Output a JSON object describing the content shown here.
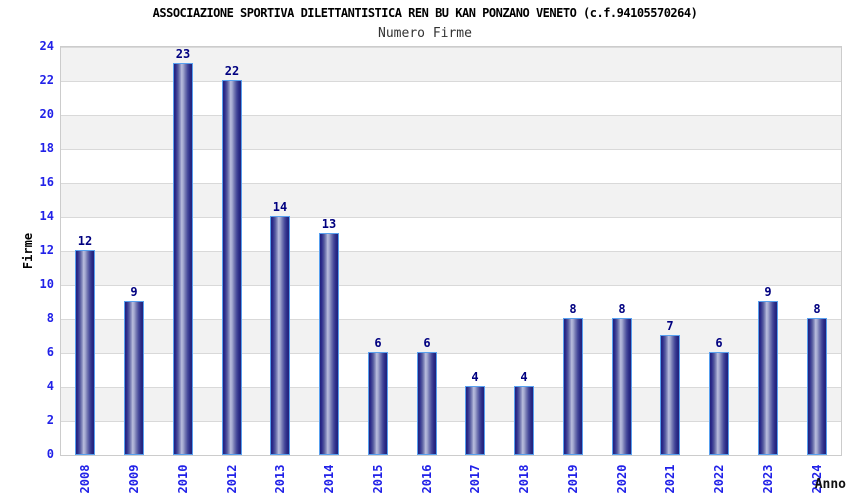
{
  "chart_data": {
    "type": "bar",
    "title": "ASSOCIAZIONE SPORTIVA DILETTANTISTICA REN BU KAN PONZANO VENETO (c.f.94105570264)",
    "subtitle": "Numero Firme",
    "xlabel": "Anno",
    "ylabel": "Firme",
    "categories": [
      "2008",
      "2009",
      "2010",
      "2012",
      "2013",
      "2014",
      "2015",
      "2016",
      "2017",
      "2018",
      "2019",
      "2020",
      "2021",
      "2022",
      "2023",
      "2024"
    ],
    "values": [
      12,
      9,
      23,
      22,
      14,
      13,
      6,
      6,
      4,
      4,
      8,
      8,
      7,
      6,
      9,
      8
    ],
    "ylim": [
      0,
      24
    ],
    "ytick_step": 2,
    "grid": "horizontal-bands-alternating",
    "legend": "none",
    "colors": {
      "bar_dark": "#22227c",
      "bar_highlight": "#babedd",
      "bar_border": "#58a0ef",
      "value_label": "#000080",
      "axis_tick_label": "#2121e8",
      "band_gray": "#f2f2f2",
      "band_white": "#ffffff",
      "grid_line": "#d9d9d9",
      "plot_border": "#cccccc",
      "title_color": "#000000"
    }
  }
}
